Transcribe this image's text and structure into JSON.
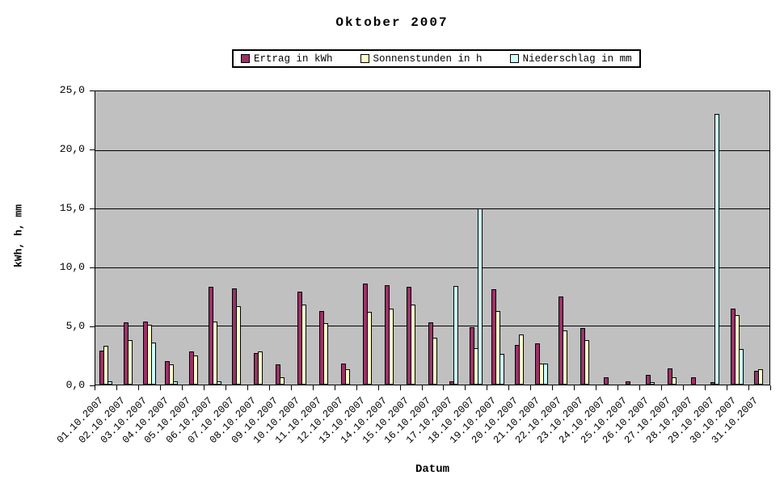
{
  "title": "Oktober 2007",
  "axes": {
    "y_title": "kWh, h, mm",
    "x_title": "Datum",
    "y_tick_labels": [
      "25,0",
      "20,0",
      "15,0",
      "10,0",
      "5,0",
      "0,0"
    ],
    "y_tick_values": [
      25,
      20,
      15,
      10,
      5,
      0
    ]
  },
  "colors": {
    "plot_background": "#c0c0c0",
    "gridline": "#000000",
    "bar_border": "#000000",
    "series_ertrag": "#993366",
    "series_sonnenstunden": "#ffffcc",
    "series_niederschlag": "#ccffff"
  },
  "chart_data": {
    "type": "bar",
    "title": "Oktober 2007",
    "xlabel": "Datum",
    "ylabel": "kWh, h, mm",
    "ylim": [
      0,
      25
    ],
    "ytick_step": 5,
    "grid": true,
    "legend_position": "top",
    "plot_bg": "#c0c0c0",
    "categories": [
      "01.10.2007",
      "02.10.2007",
      "03.10.2007",
      "04.10.2007",
      "05.10.2007",
      "06.10.2007",
      "07.10.2007",
      "08.10.2007",
      "09.10.2007",
      "10.10.2007",
      "11.10.2007",
      "12.10.2007",
      "13.10.2007",
      "14.10.2007",
      "15.10.2007",
      "16.10.2007",
      "17.10.2007",
      "18.10.2007",
      "19.10.2007",
      "20.10.2007",
      "21.10.2007",
      "22.10.2007",
      "23.10.2007",
      "24.10.2007",
      "25.10.2007",
      "26.10.2007",
      "27.10.2007",
      "28.10.2007",
      "29.10.2007",
      "30.10.2007",
      "31.10.2007"
    ],
    "series": [
      {
        "name": "Ertrag in kWh",
        "color": "#993366",
        "values": [
          2.9,
          5.3,
          5.4,
          2.0,
          2.8,
          8.3,
          8.2,
          2.7,
          1.7,
          7.9,
          6.3,
          1.8,
          8.6,
          8.5,
          8.3,
          5.3,
          0.3,
          4.9,
          8.1,
          3.4,
          3.5,
          7.5,
          4.8,
          0.6,
          0.3,
          0.8,
          1.4,
          0.6,
          0.2,
          6.5,
          1.2
        ]
      },
      {
        "name": "Sonnenstunden in h",
        "color": "#ffffcc",
        "values": [
          3.3,
          3.8,
          5.1,
          1.7,
          2.5,
          5.4,
          6.7,
          2.8,
          0.6,
          6.8,
          5.2,
          1.3,
          6.2,
          6.5,
          6.8,
          4.0,
          0,
          3.1,
          6.3,
          4.3,
          1.8,
          4.6,
          3.8,
          0,
          0,
          0.2,
          0.6,
          0,
          0,
          5.9,
          1.3
        ]
      },
      {
        "name": "Niederschlag in mm",
        "color": "#ccffff",
        "values": [
          0.3,
          0,
          3.6,
          0.3,
          0,
          0.3,
          0,
          0,
          0,
          0,
          0,
          0,
          0,
          0,
          0,
          0,
          8.4,
          15.0,
          2.6,
          0,
          1.8,
          0,
          0,
          0,
          0,
          0,
          0,
          0,
          23.1,
          3.0,
          0
        ]
      }
    ]
  }
}
